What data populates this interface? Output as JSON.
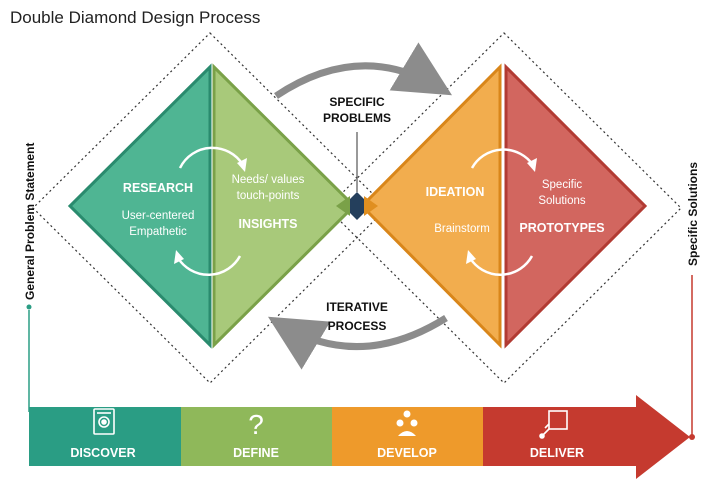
{
  "title": "Double Diamond Design Process",
  "left_axis_label": "General Problem Statement",
  "right_axis_label": "Specific Solutions",
  "center_top_label": [
    "SPECIFIC",
    "PROBLEMS"
  ],
  "center_bottom_label": [
    "ITERATIVE",
    "PROCESS"
  ],
  "diamond1": {
    "left": {
      "heading": "RESEARCH",
      "lines": [
        "User-centered",
        "Empathetic"
      ],
      "color": "#4fb593"
    },
    "right": {
      "heading": "INSIGHTS",
      "lines": [
        "Needs/ values",
        "touch-points"
      ],
      "color": "#a8c97a"
    }
  },
  "diamond2": {
    "left": {
      "heading": "IDEATION",
      "lines": [
        "Brainstorm"
      ],
      "color": "#f2ad4e"
    },
    "right": {
      "heading": "PROTOTYPES",
      "lines": [
        "Specific",
        "Solutions"
      ],
      "color": "#d2665f"
    }
  },
  "stages": [
    {
      "label": "DISCOVER",
      "icon": "document-icon",
      "color": "#2a9d84"
    },
    {
      "label": "DEFINE",
      "icon": "question-icon",
      "color": "#8fb85a"
    },
    {
      "label": "DEVELOP",
      "icon": "team-icon",
      "color": "#ee9a2b"
    },
    {
      "label": "DELIVER",
      "icon": "delivery-icon",
      "color": "#c53a2f"
    }
  ]
}
